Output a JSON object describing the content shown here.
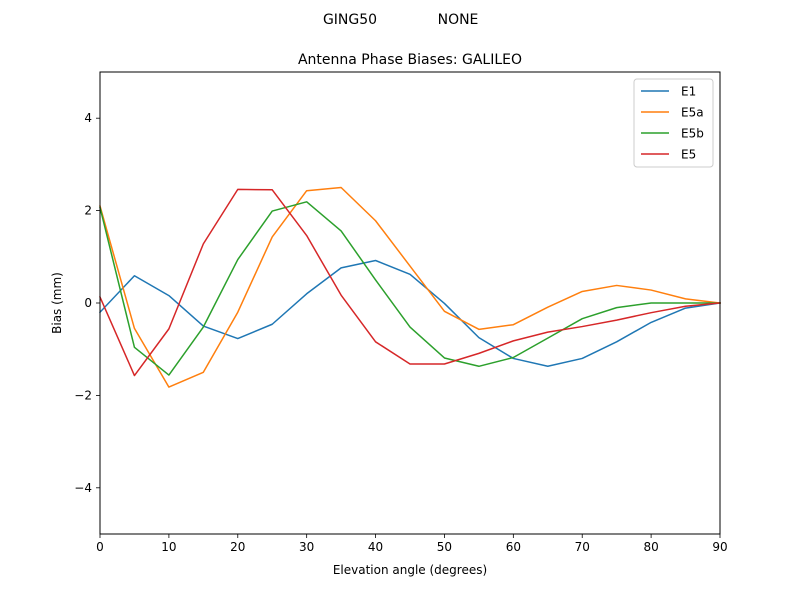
{
  "suptitle": {
    "station": "GING50",
    "radome": "NONE"
  },
  "chart_data": {
    "type": "line",
    "title": "Antenna Phase Biases: GALILEO",
    "xlabel": "Elevation angle (degrees)",
    "ylabel": "Bias (mm)",
    "xlim": [
      0,
      90
    ],
    "ylim": [
      -5,
      5
    ],
    "xticks": [
      0,
      10,
      20,
      30,
      40,
      50,
      60,
      70,
      80,
      90
    ],
    "yticks": [
      -4,
      -2,
      0,
      2,
      4
    ],
    "xtick_labels": [
      "0",
      "10",
      "20",
      "30",
      "40",
      "50",
      "60",
      "70",
      "80",
      "90"
    ],
    "ytick_labels": [
      "−4",
      "−2",
      "0",
      "2",
      "4"
    ],
    "grid": false,
    "legend_position": "top-right",
    "x": [
      0,
      5,
      10,
      15,
      20,
      25,
      30,
      35,
      40,
      45,
      50,
      55,
      60,
      65,
      70,
      75,
      80,
      85,
      90
    ],
    "series": [
      {
        "name": "E1",
        "color": "#1f77b4",
        "values": [
          -0.2,
          0.59,
          0.16,
          -0.5,
          -0.77,
          -0.46,
          0.2,
          0.76,
          0.92,
          0.62,
          -0.01,
          -0.75,
          -1.2,
          -1.37,
          -1.2,
          -0.84,
          -0.42,
          -0.11,
          0.0
        ]
      },
      {
        "name": "E5a",
        "color": "#ff7f0e",
        "values": [
          2.1,
          -0.55,
          -1.82,
          -1.5,
          -0.2,
          1.43,
          2.43,
          2.5,
          1.78,
          0.8,
          -0.18,
          -0.57,
          -0.47,
          -0.09,
          0.25,
          0.38,
          0.28,
          0.09,
          0.0
        ]
      },
      {
        "name": "E5b",
        "color": "#2ca02c",
        "values": [
          2.07,
          -0.96,
          -1.56,
          -0.52,
          0.94,
          1.99,
          2.19,
          1.56,
          0.5,
          -0.52,
          -1.19,
          -1.37,
          -1.18,
          -0.76,
          -0.34,
          -0.1,
          0.0,
          0.0,
          0.0
        ]
      },
      {
        "name": "E5",
        "color": "#d62728",
        "values": [
          0.13,
          -1.57,
          -0.56,
          1.28,
          2.46,
          2.45,
          1.46,
          0.17,
          -0.84,
          -1.32,
          -1.32,
          -1.09,
          -0.82,
          -0.63,
          -0.51,
          -0.37,
          -0.21,
          -0.07,
          0.0
        ]
      }
    ]
  }
}
